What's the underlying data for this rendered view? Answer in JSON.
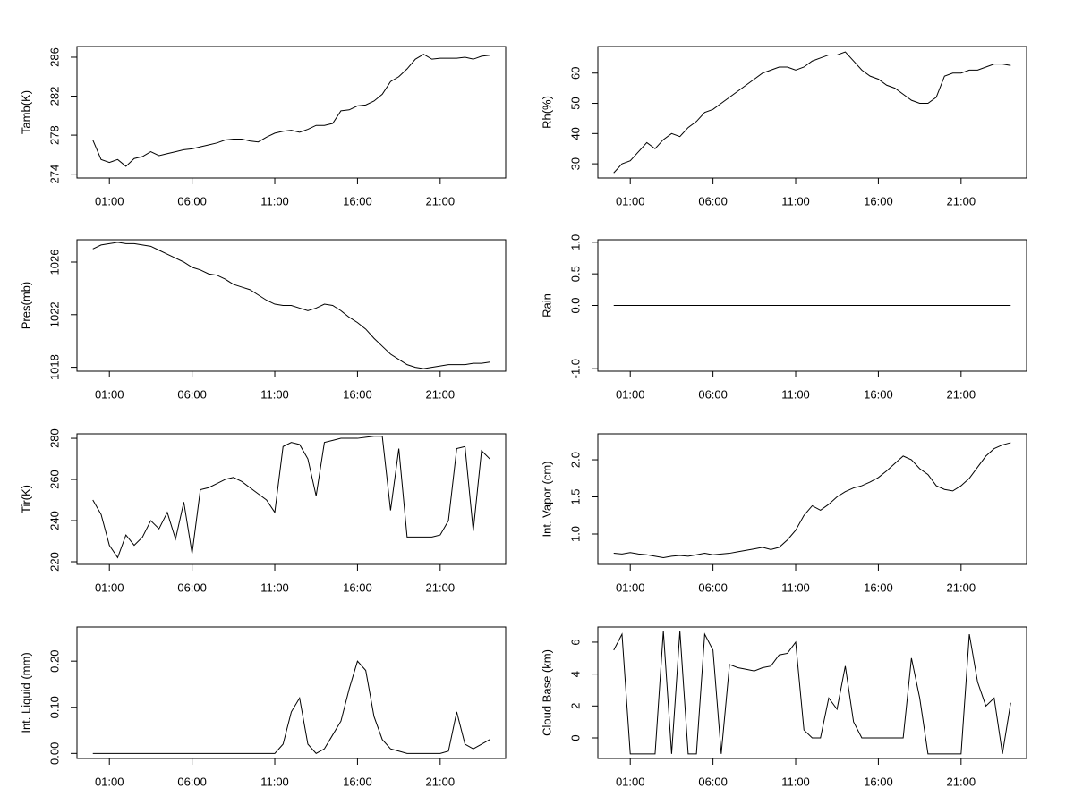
{
  "chart_data": [
    {
      "type": "line",
      "ylabel": "Tamb(K)",
      "color": "#000000",
      "x": [
        0,
        0.5,
        1,
        1.5,
        2,
        2.5,
        3,
        3.5,
        4,
        4.5,
        5,
        5.5,
        6,
        6.5,
        7,
        7.5,
        8,
        8.5,
        9,
        9.5,
        10,
        10.5,
        11,
        11.5,
        12,
        12.5,
        13,
        13.5,
        14,
        14.5,
        15,
        15.5,
        16,
        16.5,
        17,
        17.5,
        18,
        18.5,
        19,
        19.5,
        20,
        20.5,
        21,
        21.5,
        22,
        22.5,
        23,
        23.5,
        24
      ],
      "values": [
        277.5,
        275.5,
        275.2,
        275.5,
        274.8,
        275.6,
        275.8,
        276.3,
        275.9,
        276.1,
        276.3,
        276.5,
        276.6,
        276.8,
        277.0,
        277.2,
        277.5,
        277.6,
        277.6,
        277.4,
        277.3,
        277.8,
        278.2,
        278.4,
        278.5,
        278.3,
        278.6,
        279.0,
        279.0,
        279.2,
        280.5,
        280.6,
        281.0,
        281.1,
        281.5,
        282.2,
        283.5,
        284.0,
        284.8,
        285.8,
        286.3,
        285.8,
        285.9,
        285.9,
        285.9,
        286.0,
        285.8,
        286.1,
        286.2
      ],
      "xlim": [
        -0.96,
        24.96
      ],
      "ylim": [
        273.6,
        287.1
      ],
      "xticks": [
        {
          "value": 1,
          "label": "01:00"
        },
        {
          "value": 6,
          "label": "06:00"
        },
        {
          "value": 11,
          "label": "11:00"
        },
        {
          "value": 16,
          "label": "16:00"
        },
        {
          "value": 21,
          "label": "21:00"
        }
      ],
      "yticks": [
        274,
        278,
        282,
        286
      ]
    },
    {
      "type": "line",
      "ylabel": "Rh(%)",
      "color": "#000000",
      "x": [
        0,
        0.5,
        1,
        1.5,
        2,
        2.5,
        3,
        3.5,
        4,
        4.5,
        5,
        5.5,
        6,
        6.5,
        7,
        7.5,
        8,
        8.5,
        9,
        9.5,
        10,
        10.5,
        11,
        11.5,
        12,
        12.5,
        13,
        13.5,
        14,
        14.5,
        15,
        15.5,
        16,
        16.5,
        17,
        17.5,
        18,
        18.5,
        19,
        19.5,
        20,
        20.5,
        21,
        21.5,
        22,
        22.5,
        23,
        23.5,
        24
      ],
      "values": [
        27,
        30,
        31,
        34,
        37,
        35,
        38,
        40,
        39,
        42,
        44,
        47,
        48,
        50,
        52,
        54,
        56,
        58,
        60,
        61,
        62,
        62,
        61,
        62,
        64,
        65,
        66,
        66,
        67,
        64,
        61,
        59,
        58,
        56,
        55,
        53,
        51,
        50,
        50,
        52,
        59,
        60,
        60,
        61,
        61,
        62,
        63,
        63,
        62.5
      ],
      "xlim": [
        -0.96,
        24.96
      ],
      "ylim": [
        25.3,
        68.8
      ],
      "xticks": [
        {
          "value": 1,
          "label": "01:00"
        },
        {
          "value": 6,
          "label": "06:00"
        },
        {
          "value": 11,
          "label": "11:00"
        },
        {
          "value": 16,
          "label": "16:00"
        },
        {
          "value": 21,
          "label": "21:00"
        }
      ],
      "yticks": [
        30,
        40,
        50,
        60
      ]
    },
    {
      "type": "line",
      "ylabel": "Pres(mb)",
      "color": "#000000",
      "x": [
        0,
        0.5,
        1,
        1.5,
        2,
        2.5,
        3,
        3.5,
        4,
        4.5,
        5,
        5.5,
        6,
        6.5,
        7,
        7.5,
        8,
        8.5,
        9,
        9.5,
        10,
        10.5,
        11,
        11.5,
        12,
        12.5,
        13,
        13.5,
        14,
        14.5,
        15,
        15.5,
        16,
        16.5,
        17,
        17.5,
        18,
        18.5,
        19,
        19.5,
        20,
        20.5,
        21,
        21.5,
        22,
        22.5,
        23,
        23.5,
        24
      ],
      "values": [
        1027.0,
        1027.3,
        1027.4,
        1027.5,
        1027.4,
        1027.4,
        1027.3,
        1027.2,
        1026.9,
        1026.6,
        1026.3,
        1026.0,
        1025.6,
        1025.4,
        1025.1,
        1025.0,
        1024.7,
        1024.3,
        1024.1,
        1023.9,
        1023.5,
        1023.1,
        1022.8,
        1022.7,
        1022.7,
        1022.5,
        1022.3,
        1022.5,
        1022.8,
        1022.7,
        1022.3,
        1021.8,
        1021.4,
        1020.9,
        1020.2,
        1019.6,
        1019.0,
        1018.6,
        1018.2,
        1018.0,
        1017.9,
        1018.0,
        1018.1,
        1018.2,
        1018.2,
        1018.2,
        1018.3,
        1018.3,
        1018.4
      ],
      "xlim": [
        -0.96,
        24.96
      ],
      "ylim": [
        1017.7,
        1027.7
      ],
      "xticks": [
        {
          "value": 1,
          "label": "01:00"
        },
        {
          "value": 6,
          "label": "06:00"
        },
        {
          "value": 11,
          "label": "11:00"
        },
        {
          "value": 16,
          "label": "16:00"
        },
        {
          "value": 21,
          "label": "21:00"
        }
      ],
      "yticks": [
        1018,
        1022,
        1026
      ]
    },
    {
      "type": "line",
      "ylabel": "Rain",
      "color": "#000000",
      "x": [
        0,
        0.5,
        1,
        1.5,
        2,
        2.5,
        3,
        3.5,
        4,
        4.5,
        5,
        5.5,
        6,
        6.5,
        7,
        7.5,
        8,
        8.5,
        9,
        9.5,
        10,
        10.5,
        11,
        11.5,
        12,
        12.5,
        13,
        13.5,
        14,
        14.5,
        15,
        15.5,
        16,
        16.5,
        17,
        17.5,
        18,
        18.5,
        19,
        19.5,
        20,
        20.5,
        21,
        21.5,
        22,
        22.5,
        23,
        23.5,
        24
      ],
      "values": [
        0,
        0,
        0,
        0,
        0,
        0,
        0,
        0,
        0,
        0,
        0,
        0,
        0,
        0,
        0,
        0,
        0,
        0,
        0,
        0,
        0,
        0,
        0,
        0,
        0,
        0,
        0,
        0,
        0,
        0,
        0,
        0,
        0,
        0,
        0,
        0,
        0,
        0,
        0,
        0,
        0,
        0,
        0,
        0,
        0,
        0,
        0,
        0,
        0
      ],
      "xlim": [
        -0.96,
        24.96
      ],
      "ylim": [
        -1.04,
        1.04
      ],
      "xticks": [
        {
          "value": 1,
          "label": "01:00"
        },
        {
          "value": 6,
          "label": "06:00"
        },
        {
          "value": 11,
          "label": "11:00"
        },
        {
          "value": 16,
          "label": "16:00"
        },
        {
          "value": 21,
          "label": "21:00"
        }
      ],
      "yticks": [
        {
          "value": -1,
          "label": "-1.0"
        },
        {
          "value": 0,
          "label": "0.0"
        },
        {
          "value": 0.5,
          "label": "0.5"
        },
        {
          "value": 1,
          "label": "1.0"
        }
      ]
    },
    {
      "type": "line",
      "ylabel": "Tir(K)",
      "color": "#000000",
      "x": [
        0,
        0.5,
        1,
        1.5,
        2,
        2.5,
        3,
        3.5,
        4,
        4.5,
        5,
        5.5,
        6,
        6.5,
        7,
        7.5,
        8,
        8.5,
        9,
        9.5,
        10,
        10.5,
        11,
        11.5,
        12,
        12.5,
        13,
        13.5,
        14,
        14.5,
        15,
        15.5,
        16,
        16.5,
        17,
        17.5,
        18,
        18.5,
        19,
        19.5,
        20,
        20.5,
        21,
        21.5,
        22,
        22.5,
        23,
        23.5,
        24
      ],
      "values": [
        250,
        243,
        228,
        222,
        233,
        228,
        232,
        240,
        236,
        244,
        231,
        249,
        224,
        255,
        256,
        258,
        260,
        261,
        259,
        256,
        253,
        250,
        244,
        276,
        278,
        277,
        270,
        252,
        278,
        279,
        280,
        280,
        280,
        280.5,
        281,
        281,
        245,
        275,
        232,
        232,
        232,
        232,
        233,
        240,
        275,
        276,
        235,
        274,
        270
      ],
      "xlim": [
        -0.96,
        24.96
      ],
      "ylim": [
        218.7,
        282.2
      ],
      "xticks": [
        {
          "value": 1,
          "label": "01:00"
        },
        {
          "value": 6,
          "label": "06:00"
        },
        {
          "value": 11,
          "label": "11:00"
        },
        {
          "value": 16,
          "label": "16:00"
        },
        {
          "value": 21,
          "label": "21:00"
        }
      ],
      "yticks": [
        220,
        240,
        260,
        280
      ]
    },
    {
      "type": "line",
      "ylabel": "Int. Vapor (cm)",
      "color": "#000000",
      "x": [
        0,
        0.5,
        1,
        1.5,
        2,
        2.5,
        3,
        3.5,
        4,
        4.5,
        5,
        5.5,
        6,
        6.5,
        7,
        7.5,
        8,
        8.5,
        9,
        9.5,
        10,
        10.5,
        11,
        11.5,
        12,
        12.5,
        13,
        13.5,
        14,
        14.5,
        15,
        15.5,
        16,
        16.5,
        17,
        17.5,
        18,
        18.5,
        19,
        19.5,
        20,
        20.5,
        21,
        21.5,
        22,
        22.5,
        23,
        23.5,
        24
      ],
      "values": [
        0.74,
        0.73,
        0.75,
        0.73,
        0.72,
        0.7,
        0.68,
        0.7,
        0.71,
        0.7,
        0.72,
        0.74,
        0.72,
        0.73,
        0.74,
        0.76,
        0.78,
        0.8,
        0.82,
        0.79,
        0.82,
        0.92,
        1.05,
        1.25,
        1.38,
        1.32,
        1.4,
        1.5,
        1.57,
        1.62,
        1.65,
        1.7,
        1.76,
        1.85,
        1.95,
        2.05,
        2.0,
        1.88,
        1.8,
        1.65,
        1.6,
        1.58,
        1.65,
        1.75,
        1.9,
        2.05,
        2.15,
        2.2,
        2.23
      ],
      "xlim": [
        -0.96,
        24.96
      ],
      "ylim": [
        0.59,
        2.35
      ],
      "xticks": [
        {
          "value": 1,
          "label": "01:00"
        },
        {
          "value": 6,
          "label": "06:00"
        },
        {
          "value": 11,
          "label": "11:00"
        },
        {
          "value": 16,
          "label": "16:00"
        },
        {
          "value": 21,
          "label": "21:00"
        }
      ],
      "yticks": [
        {
          "value": 1,
          "label": "1.0"
        },
        {
          "value": 1.5,
          "label": "1.5"
        },
        {
          "value": 2,
          "label": "2.0"
        }
      ]
    },
    {
      "type": "line",
      "ylabel": "Int. Liquid (mm)",
      "color": "#000000",
      "x": [
        0,
        0.5,
        1,
        1.5,
        2,
        2.5,
        3,
        3.5,
        4,
        4.5,
        5,
        5.5,
        6,
        6.5,
        7,
        7.5,
        8,
        8.5,
        9,
        9.5,
        10,
        10.5,
        11,
        11.5,
        12,
        12.5,
        13,
        13.5,
        14,
        14.5,
        15,
        15.5,
        16,
        16.5,
        17,
        17.5,
        18,
        18.5,
        19,
        19.5,
        20,
        20.5,
        21,
        21.5,
        22,
        22.5,
        23,
        23.5,
        24
      ],
      "values": [
        0,
        0,
        0,
        0,
        0,
        0,
        0,
        0,
        0,
        0,
        0,
        0,
        0,
        0,
        0,
        0,
        0,
        0,
        0,
        0,
        0,
        0,
        0,
        0.02,
        0.09,
        0.12,
        0.02,
        0,
        0.01,
        0.04,
        0.07,
        0.14,
        0.2,
        0.18,
        0.08,
        0.03,
        0.01,
        0.005,
        0,
        0,
        0,
        0,
        0,
        0.005,
        0.09,
        0.02,
        0.01,
        0.02,
        0.03
      ],
      "xlim": [
        -0.96,
        24.96
      ],
      "ylim": [
        -0.011,
        0.274
      ],
      "xticks": [
        {
          "value": 1,
          "label": "01:00"
        },
        {
          "value": 6,
          "label": "06:00"
        },
        {
          "value": 11,
          "label": "11:00"
        },
        {
          "value": 16,
          "label": "16:00"
        },
        {
          "value": 21,
          "label": "21:00"
        }
      ],
      "yticks": [
        {
          "value": 0,
          "label": "0.00"
        },
        {
          "value": 0.1,
          "label": "0.10"
        },
        {
          "value": 0.2,
          "label": "0.20"
        }
      ]
    },
    {
      "type": "line",
      "ylabel": "Cloud Base (km)",
      "color": "#000000",
      "x": [
        0,
        0.5,
        1,
        1.5,
        2,
        2.5,
        3,
        3.5,
        4,
        4.5,
        5,
        5.5,
        6,
        6.5,
        7,
        7.5,
        8,
        8.5,
        9,
        9.5,
        10,
        10.5,
        11,
        11.5,
        12,
        12.5,
        13,
        13.5,
        14,
        14.5,
        15,
        15.5,
        16,
        16.5,
        17,
        17.5,
        18,
        18.5,
        19,
        19.5,
        20,
        20.5,
        21,
        21.5,
        22,
        22.5,
        23,
        23.5,
        24
      ],
      "values": [
        5.5,
        6.5,
        -1,
        -1,
        -1,
        -1,
        6.7,
        -1,
        6.7,
        -1,
        -1,
        6.5,
        5.5,
        -1,
        4.6,
        4.4,
        4.3,
        4.2,
        4.4,
        4.5,
        5.2,
        5.3,
        6.0,
        0.5,
        0,
        0,
        2.5,
        1.8,
        4.5,
        1.0,
        0,
        0,
        0,
        0,
        0,
        0,
        5.0,
        2.5,
        -1,
        -1,
        -1,
        -1,
        -1,
        6.5,
        3.5,
        2.0,
        2.5,
        -1,
        2.2
      ],
      "xlim": [
        -0.96,
        24.96
      ],
      "ylim": [
        -1.29,
        6.95
      ],
      "xticks": [
        {
          "value": 1,
          "label": "01:00"
        },
        {
          "value": 6,
          "label": "06:00"
        },
        {
          "value": 11,
          "label": "11:00"
        },
        {
          "value": 16,
          "label": "16:00"
        },
        {
          "value": 21,
          "label": "21:00"
        }
      ],
      "yticks": [
        0,
        2,
        4,
        6
      ]
    }
  ]
}
